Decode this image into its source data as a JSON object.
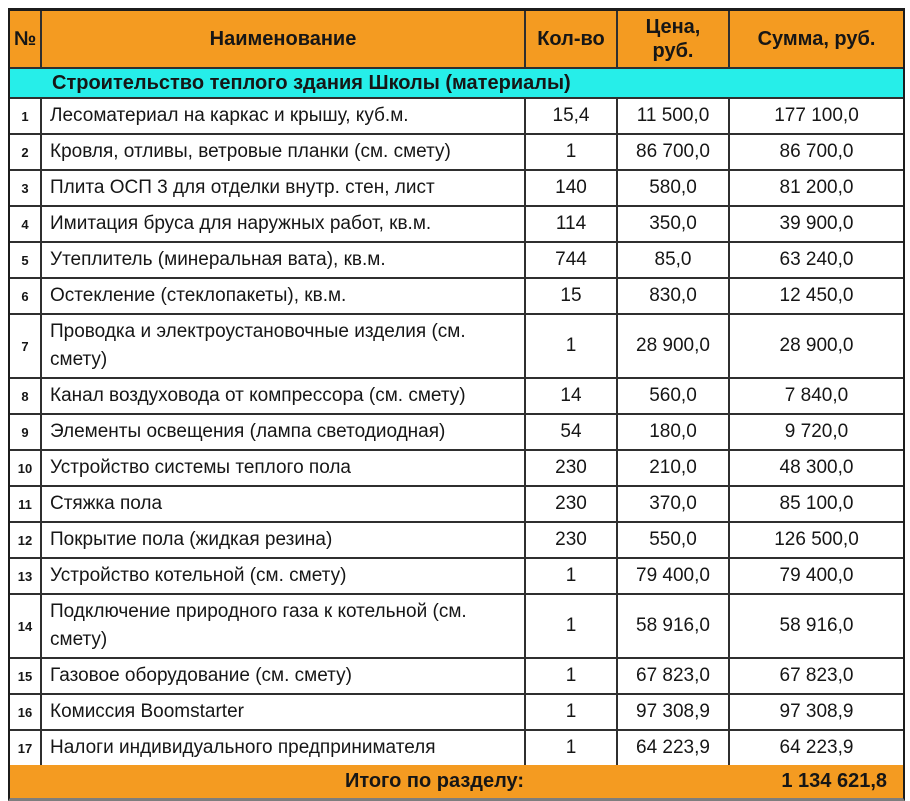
{
  "table": {
    "columns": {
      "num": "№",
      "name": "Наименование",
      "qty": "Кол-во",
      "price": "Цена,\nруб.",
      "sum": "Сумма, руб."
    },
    "section_title": "Строительство теплого здания Школы (материалы)",
    "rows": [
      {
        "num": "1",
        "name": "Лесоматериал на каркас и крышу, куб.м.",
        "qty": "15,4",
        "price": "11 500,0",
        "sum": "177 100,0"
      },
      {
        "num": "2",
        "name": "Кровля, отливы, ветровые планки (см. смету)",
        "qty": "1",
        "price": "86 700,0",
        "sum": "86 700,0"
      },
      {
        "num": "3",
        "name": "Плита ОСП 3 для отделки внутр. стен, лист",
        "qty": "140",
        "price": "580,0",
        "sum": "81 200,0"
      },
      {
        "num": "4",
        "name": "Имитация бруса для наружных работ, кв.м.",
        "qty": "114",
        "price": "350,0",
        "sum": "39 900,0"
      },
      {
        "num": "5",
        "name": "Утеплитель (минеральная вата), кв.м.",
        "qty": "744",
        "price": "85,0",
        "sum": "63 240,0"
      },
      {
        "num": "6",
        "name": "Остекление (стеклопакеты), кв.м.",
        "qty": "15",
        "price": "830,0",
        "sum": "12 450,0"
      },
      {
        "num": "7",
        "name": "Проводка и электроустановочные изделия (см. смету)",
        "qty": "1",
        "price": "28 900,0",
        "sum": "28 900,0"
      },
      {
        "num": "8",
        "name": "Канал воздуховода от компрессора (см. смету)",
        "qty": "14",
        "price": "560,0",
        "sum": "7 840,0"
      },
      {
        "num": "9",
        "name": "Элементы освещения (лампа светодиодная)",
        "qty": "54",
        "price": "180,0",
        "sum": "9 720,0"
      },
      {
        "num": "10",
        "name": "Устройство системы теплого пола",
        "qty": "230",
        "price": "210,0",
        "sum": "48 300,0"
      },
      {
        "num": "11",
        "name": "Стяжка пола",
        "qty": "230",
        "price": "370,0",
        "sum": "85 100,0"
      },
      {
        "num": "12",
        "name": "Покрытие пола (жидкая резина)",
        "qty": "230",
        "price": "550,0",
        "sum": "126 500,0"
      },
      {
        "num": "13",
        "name": "Устройство котельной (см. смету)",
        "qty": "1",
        "price": "79 400,0",
        "sum": "79 400,0"
      },
      {
        "num": "14",
        "name": "Подключение природного газа к котельной (см. смету)",
        "qty": "1",
        "price": "58 916,0",
        "sum": "58 916,0"
      },
      {
        "num": "15",
        "name": "Газовое оборудование (см. смету)",
        "qty": "1",
        "price": "67 823,0",
        "sum": "67 823,0"
      },
      {
        "num": "16",
        "name": "Комиссия Boomstarter",
        "qty": "1",
        "price": "97 308,9",
        "sum": "97 308,9"
      },
      {
        "num": "17",
        "name": "Налоги индивидуального предпринимателя",
        "qty": "1",
        "price": "64 223,9",
        "sum": "64 223,9"
      }
    ],
    "footer": {
      "label": "Итого по разделу:",
      "total": "1 134 621,8"
    }
  },
  "colors": {
    "header_bg": "#F49B21",
    "section_bg": "#26EEE9",
    "border": "#2F2F2F",
    "bottom_line": "#7E7E7E"
  }
}
